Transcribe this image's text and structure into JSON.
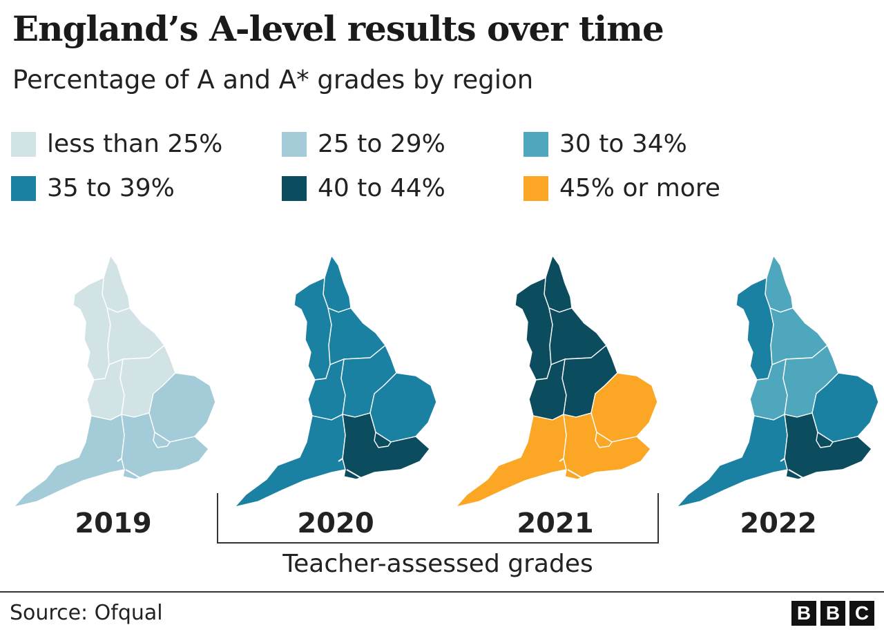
{
  "title": "England’s A-level results over time",
  "subtitle": "Percentage of A and A* grades by region",
  "legend": [
    {
      "label": "less than 25%",
      "color": "#d2e3e6"
    },
    {
      "label": "25 to 29%",
      "color": "#a3ccd8"
    },
    {
      "label": "30 to 34%",
      "color": "#4ea7bd"
    },
    {
      "label": "35 to 39%",
      "color": "#1a81a3"
    },
    {
      "label": "40 to 44%",
      "color": "#0b4c5f"
    },
    {
      "label": "45% or more",
      "color": "#fca625"
    }
  ],
  "maps": [
    {
      "year": "2019",
      "regions": {
        "north_east": "less than 25%",
        "north_west": "less than 25%",
        "yorkshire": "less than 25%",
        "west_midlands": "less than 25%",
        "east_midlands": "less than 25%",
        "east_of_england": "25 to 29%",
        "south_west": "25 to 29%",
        "south_east": "25 to 29%",
        "london": "25 to 29%"
      }
    },
    {
      "year": "2020",
      "regions": {
        "north_east": "35 to 39%",
        "north_west": "35 to 39%",
        "yorkshire": "35 to 39%",
        "west_midlands": "35 to 39%",
        "east_midlands": "35 to 39%",
        "east_of_england": "35 to 39%",
        "south_west": "35 to 39%",
        "south_east": "40 to 44%",
        "london": "40 to 44%"
      }
    },
    {
      "year": "2021",
      "regions": {
        "north_east": "40 to 44%",
        "north_west": "40 to 44%",
        "yorkshire": "40 to 44%",
        "west_midlands": "40 to 44%",
        "east_midlands": "40 to 44%",
        "east_of_england": "45% or more",
        "south_west": "45% or more",
        "south_east": "45% or more",
        "london": "45% or more"
      }
    },
    {
      "year": "2022",
      "regions": {
        "north_east": "30 to 34%",
        "north_west": "35 to 39%",
        "yorkshire": "30 to 34%",
        "west_midlands": "30 to 34%",
        "east_midlands": "30 to 34%",
        "east_of_england": "35 to 39%",
        "south_west": "35 to 39%",
        "south_east": "40 to 44%",
        "london": "40 to 44%"
      }
    }
  ],
  "bracket_label": "Teacher-assessed grades",
  "source": "Source: Ofqual",
  "logo": [
    "B",
    "B",
    "C"
  ]
}
